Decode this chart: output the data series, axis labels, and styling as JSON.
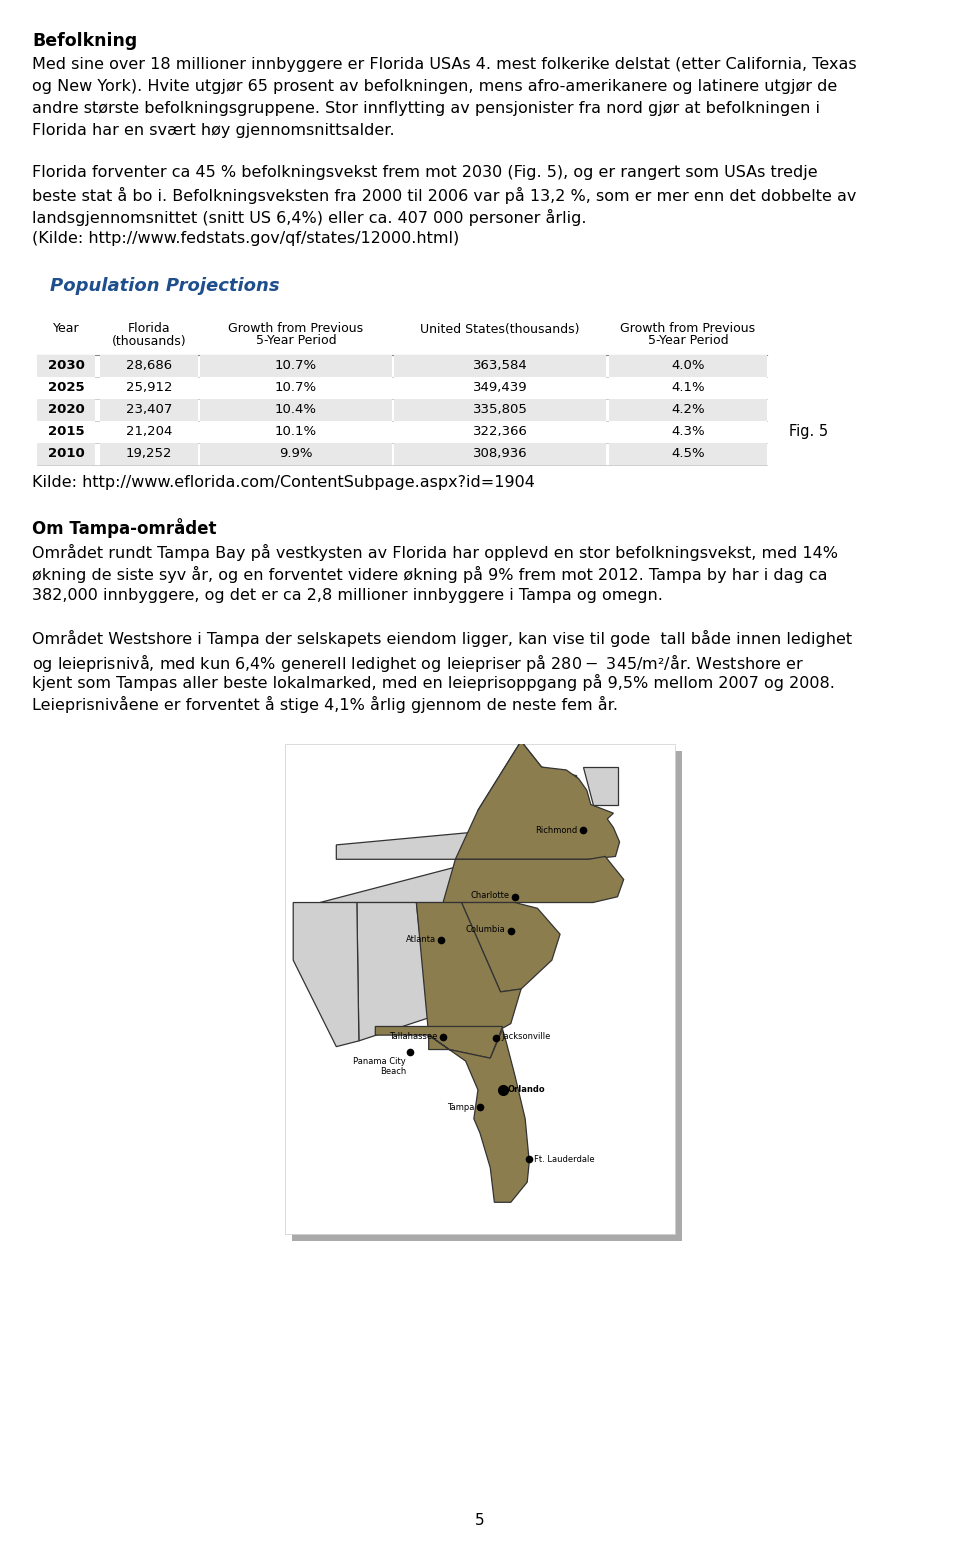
{
  "title": "Befolkning",
  "paragraph1": "Med sine over 18 millioner innbyggere er Florida USAs 4. mest folkerike delstat (etter California, Texas og New York). Hvite utgjør 65 prosent av befolkningen, mens afro-amerikanere og latinere utgjør de andre største befolkningsgruppene. Stor innflytting av pensjonister fra nord gjør at befolkningen i Florida har en svært høy gjennomsnittsalder.",
  "paragraph2_line1": "Florida forventer ca 45 % befolkningsvekst frem mot 2030 (Fig. 5), og er rangert som USAs tredje",
  "paragraph2_line2": "beste stat å bo i. Befolkningsveksten fra 2000 til 2006 var på 13,2 %, som er mer enn det dobbelte av",
  "paragraph2_line3": "landsgjennomsnittet (snitt US 6,4%) eller ca. 407 000 personer årlig.",
  "paragraph2_line4": "(Kilde: http://www.fedstats.gov/qf/states/12000.html)",
  "table_title": "Population Projections",
  "table_title_color": "#1F4E8C",
  "table_headers_row1": [
    "Year",
    "Florida",
    "Growth from Previous",
    "United States(thousands)",
    "Growth from Previous"
  ],
  "table_headers_row2": [
    "",
    "(thousands)",
    "5-Year Period",
    "",
    "5-Year Period"
  ],
  "table_data": [
    [
      "2030",
      "28,686",
      "10.7%",
      "363,584",
      "4.0%"
    ],
    [
      "2025",
      "25,912",
      "10.7%",
      "349,439",
      "4.1%"
    ],
    [
      "2020",
      "23,407",
      "10.4%",
      "335,805",
      "4.2%"
    ],
    [
      "2015",
      "21,204",
      "10.1%",
      "322,366",
      "4.3%"
    ],
    [
      "2010",
      "19,252",
      "9.9%",
      "308,936",
      "4.5%"
    ]
  ],
  "row_colors": [
    "#E8E8E8",
    "#FFFFFF",
    "#E8E8E8",
    "#FFFFFF",
    "#E8E8E8"
  ],
  "fig_label": "Fig. 5",
  "source_table": "Kilde: http://www.eflorida.com/ContentSubpage.aspx?id=1904",
  "section2_title": "Om Tampa-området",
  "paragraph3_line1": "Området rundt Tampa Bay på vestkysten av Florida har opplevd en stor befolkningsvekst, med 14%",
  "paragraph3_line2": "økning de siste syv år, og en forventet videre økning på 9% frem mot 2012. Tampa by har i dag ca",
  "paragraph3_line3": "382,000 innbyggere, og det er ca 2,8 millioner innbyggere i Tampa og omegn.",
  "paragraph4_line1": "Området Westshore i Tampa der selskapets eiendom ligger, kan vise til gode  tall både innen ledighet",
  "paragraph4_line2": "og leieprisnivå, med kun 6,4% generell ledighet og leiepriser på $ 280 - $ 345/m²/år. Westshore er",
  "paragraph4_line3": "kjent som Tampas aller beste lokalmarked, med en leieprisoppgang på 9,5% mellom 2007 og 2008.",
  "paragraph4_line4": "Leieprisnivåene er forventet å stige 4,1% årlig gjennom de neste fem år.",
  "page_number": "5",
  "bg_color": "#FFFFFF",
  "text_color": "#000000",
  "map_color_highlighted": "#8B7D4E",
  "map_color_gray": "#D0D0D0",
  "map_color_border": "#333333"
}
